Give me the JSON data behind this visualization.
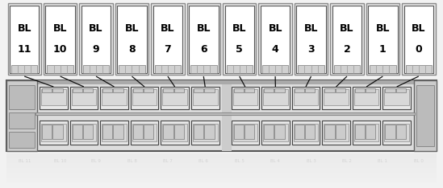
{
  "bg_color": "#f2f2f2",
  "figure_bg": "#f2f2f2",
  "blade_labels": [
    "BL\n11",
    "BL\n10",
    "BL\n9",
    "BL\n8",
    "BL\n7",
    "BL\n6",
    "BL\n5",
    "BL\n4",
    "BL\n3",
    "BL\n2",
    "BL\n1",
    "BL\n0"
  ],
  "num_blades": 12,
  "line_color": "#111111",
  "box_color": "#ffffff",
  "box_edge_color": "#555555",
  "chassis_fill": "#e0e0e0",
  "chassis_edge": "#666666"
}
